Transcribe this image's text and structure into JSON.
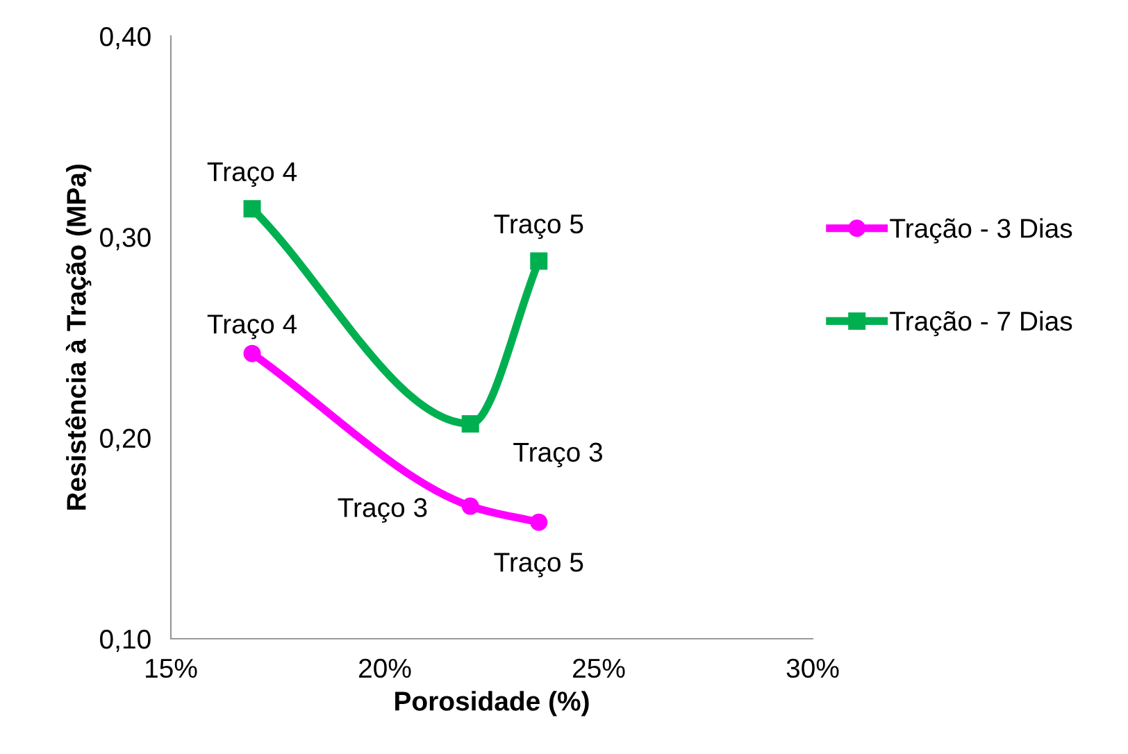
{
  "chart_data": {
    "type": "line",
    "xlabel": "Porosidade (%)",
    "ylabel": "Resistência à Tração (MPa)",
    "xlim": [
      15,
      30
    ],
    "xticks": [
      {
        "value": 15,
        "label": "15%"
      },
      {
        "value": 20,
        "label": "20%"
      },
      {
        "value": 25,
        "label": "25%"
      },
      {
        "value": 30,
        "label": "30%"
      }
    ],
    "ylim": [
      0.1,
      0.4
    ],
    "yticks": [
      {
        "value": 0.1,
        "label": "0,10"
      },
      {
        "value": 0.2,
        "label": "0,20"
      },
      {
        "value": 0.3,
        "label": "0,30"
      },
      {
        "value": 0.4,
        "label": "0,40"
      }
    ],
    "grid": false,
    "legend": "right",
    "series": [
      {
        "name": "Tração - 3 Dias",
        "color": "#ff00ff",
        "marker": "circle",
        "x": [
          16.9,
          22.0,
          23.6
        ],
        "values": [
          0.242,
          0.166,
          0.158
        ]
      },
      {
        "name": "Tração - 7 Dias",
        "color": "#00b050",
        "marker": "square",
        "x": [
          16.9,
          22.0,
          23.6
        ],
        "values": [
          0.314,
          0.207,
          0.288
        ]
      }
    ],
    "annotations": [
      {
        "text": "Traço 4",
        "x": 16.9,
        "y": 0.242
      },
      {
        "text": "Traço 3",
        "x": 22.0,
        "y": 0.166
      },
      {
        "text": "Traço 5",
        "x": 23.6,
        "y": 0.158
      },
      {
        "text": "Traço 4",
        "x": 16.9,
        "y": 0.314
      },
      {
        "text": "Traço 3",
        "x": 22.0,
        "y": 0.207
      },
      {
        "text": "Traço 5",
        "x": 23.6,
        "y": 0.288
      }
    ]
  }
}
